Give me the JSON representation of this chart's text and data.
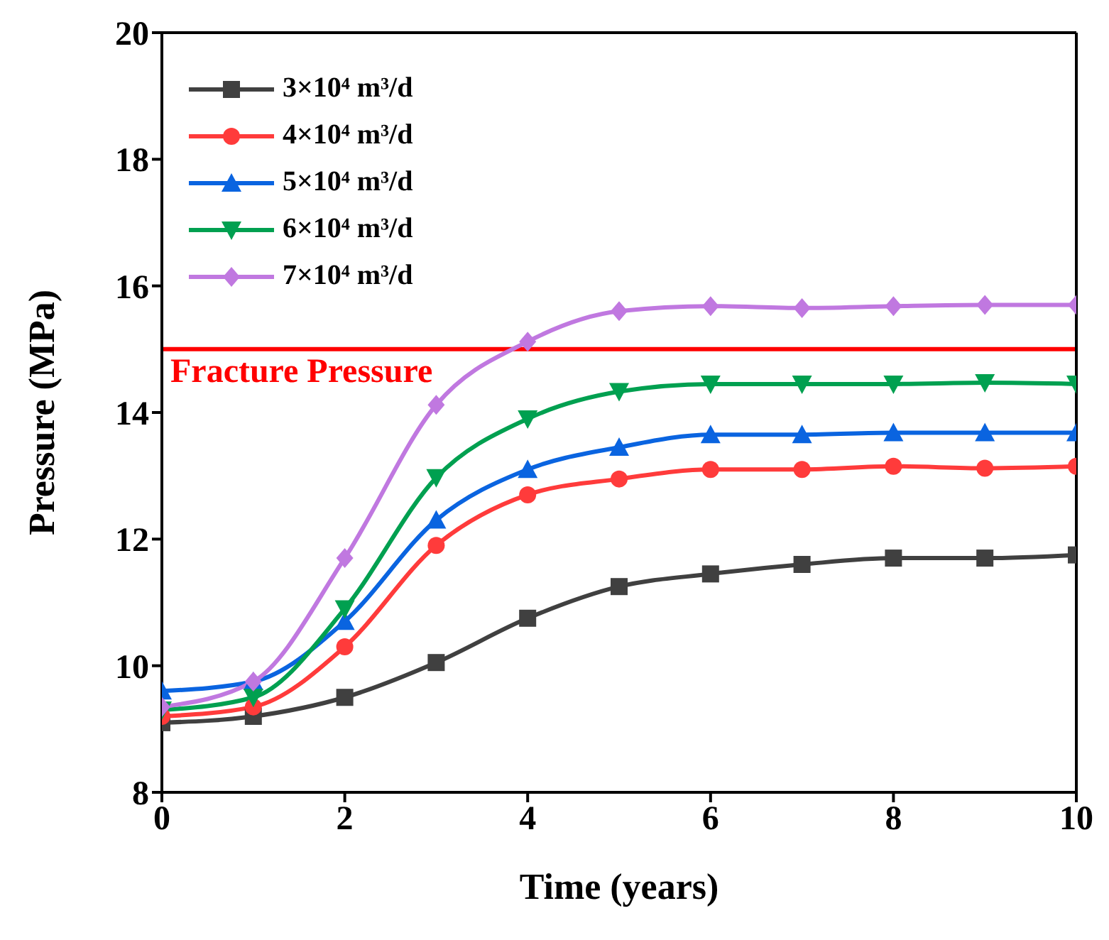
{
  "chart_data": {
    "type": "line",
    "xlabel": "Time (years)",
    "ylabel": "Pressure (MPa)",
    "x": [
      0,
      1,
      2,
      3,
      4,
      5,
      6,
      7,
      8,
      9,
      10
    ],
    "xlim": [
      0,
      10
    ],
    "xticks": [
      0,
      2,
      4,
      6,
      8,
      10
    ],
    "ylim": [
      8,
      20
    ],
    "yticks": [
      8,
      10,
      12,
      14,
      16,
      18,
      20
    ],
    "legend": "top left",
    "series": [
      {
        "name": "3×10⁴ m³/d",
        "color": "#404040",
        "marker": "square",
        "values": [
          9.1,
          9.2,
          9.5,
          10.05,
          10.75,
          11.25,
          11.45,
          11.6,
          11.7,
          11.7,
          11.75
        ]
      },
      {
        "name": "4×10⁴ m³/d",
        "color": "#ff3b3b",
        "marker": "circle",
        "values": [
          9.2,
          9.35,
          10.3,
          11.9,
          12.7,
          12.95,
          13.1,
          13.1,
          13.15,
          13.12,
          13.15
        ]
      },
      {
        "name": "5×10⁴ m³/d",
        "color": "#0a64e0",
        "marker": "triangle",
        "values": [
          9.6,
          9.75,
          10.7,
          12.3,
          13.1,
          13.45,
          13.65,
          13.65,
          13.68,
          13.68,
          13.68
        ]
      },
      {
        "name": "6×10⁴ m³/d",
        "color": "#00a050",
        "marker": "triangle-down",
        "values": [
          9.3,
          9.5,
          10.9,
          12.97,
          13.9,
          14.33,
          14.45,
          14.45,
          14.45,
          14.47,
          14.45
        ]
      },
      {
        "name": "7×10⁴ m³/d",
        "color": "#c078e0",
        "marker": "diamond",
        "values": [
          9.35,
          9.75,
          11.7,
          14.12,
          15.12,
          15.6,
          15.68,
          15.65,
          15.68,
          15.7,
          15.7
        ]
      }
    ],
    "ref_lines": [
      {
        "axis": "y",
        "value": 15,
        "label": "Fracture Pressure",
        "color": "#ff0000",
        "line_style": "solid"
      }
    ]
  }
}
